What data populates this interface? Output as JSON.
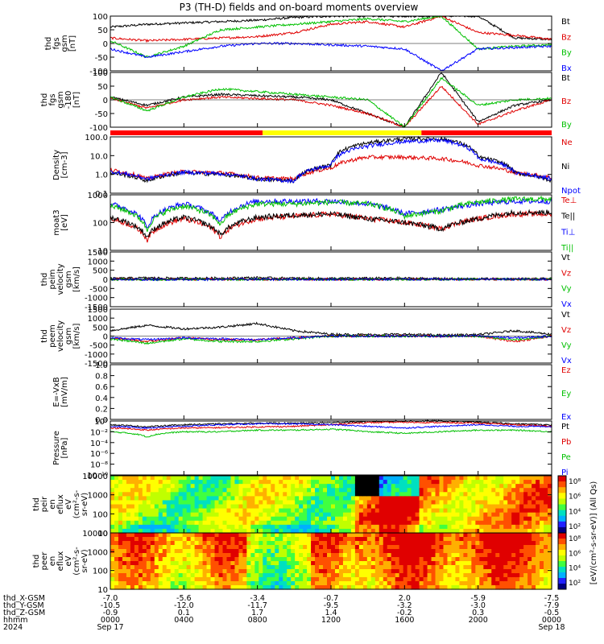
{
  "title": "P3 (TH-D) fields and on-board moments overview",
  "chart_data": [
    {
      "type": "line",
      "ylabel": [
        "thd",
        "fgs",
        "gsm",
        "[nT]"
      ],
      "yticks": [
        "100",
        "50",
        "0",
        "-50",
        "-100"
      ],
      "ylim": [
        -100,
        100
      ],
      "series": [
        {
          "name": "Bt",
          "color": "#000000",
          "values": [
            60,
            70,
            75,
            80,
            85,
            95,
            100,
            100,
            100,
            100,
            100,
            20,
            15
          ]
        },
        {
          "name": "Bz",
          "color": "#e00000",
          "values": [
            20,
            10,
            15,
            20,
            25,
            40,
            70,
            80,
            60,
            100,
            40,
            30,
            15
          ]
        },
        {
          "name": "By",
          "color": "#00c000",
          "values": [
            10,
            -50,
            -10,
            50,
            60,
            70,
            80,
            90,
            80,
            100,
            -20,
            -10,
            -5
          ]
        },
        {
          "name": "Bx",
          "color": "#0000ff",
          "values": [
            -20,
            -50,
            -30,
            -10,
            0,
            0,
            -5,
            -10,
            -20,
            -100,
            -20,
            -15,
            -10
          ]
        }
      ]
    },
    {
      "type": "line",
      "ylabel": [
        "thd",
        "fgs",
        "gsm",
        "-180",
        "[nT]"
      ],
      "yticks": [
        "100",
        "50",
        "0",
        "-50",
        "-100"
      ],
      "ylim": [
        -100,
        100
      ],
      "series": [
        {
          "name": "Bt",
          "color": "#000000",
          "values": [
            10,
            -20,
            10,
            20,
            15,
            10,
            0,
            -50,
            -100,
            100,
            -80,
            -20,
            0
          ]
        },
        {
          "name": "Bz",
          "color": "#e00000",
          "values": [
            5,
            -30,
            0,
            10,
            5,
            0,
            -20,
            -50,
            -100,
            50,
            -90,
            -40,
            0
          ]
        },
        {
          "name": "By",
          "color": "#00c000",
          "values": [
            10,
            -40,
            10,
            40,
            30,
            20,
            10,
            0,
            -100,
            80,
            -20,
            0,
            5
          ]
        }
      ]
    },
    {
      "type": "line",
      "ylabel": [
        "Density",
        "[cm-3]"
      ],
      "yticks": [
        "100.0",
        "10.0",
        "1.0",
        "0.1"
      ],
      "ylim": [
        0.05,
        200
      ],
      "yscale": "log",
      "series": [
        {
          "name": "Ne",
          "color": "#e00000",
          "values": [
            1.5,
            0.4,
            1.2,
            1.0,
            0.5,
            0.4,
            2,
            10,
            10,
            8,
            3,
            1,
            0.5
          ]
        },
        {
          "name": "Ni",
          "color": "#000000",
          "values": [
            1.0,
            0.3,
            1.0,
            0.8,
            0.4,
            0.3,
            3,
            80,
            150,
            150,
            10,
            1,
            0.3
          ]
        },
        {
          "name": "Npot",
          "color": "#0000ff",
          "values": [
            1.2,
            0.4,
            1.1,
            0.9,
            0.4,
            0.3,
            3,
            50,
            100,
            120,
            8,
            1,
            0.4
          ]
        }
      ]
    },
    {
      "type": "line",
      "ylabel": [
        "moat3",
        "[eV]"
      ],
      "yticks": [
        "1000",
        "100",
        "10"
      ],
      "ylim": [
        10,
        4000
      ],
      "yscale": "log",
      "series": [
        {
          "name": "Te⊥",
          "color": "#e00000",
          "values": [
            300,
            30,
            300,
            40,
            300,
            400,
            500,
            300,
            200,
            100,
            300,
            500,
            500
          ]
        },
        {
          "name": "Te||",
          "color": "#000000",
          "values": [
            350,
            40,
            350,
            50,
            350,
            450,
            500,
            300,
            200,
            100,
            300,
            600,
            600
          ]
        },
        {
          "name": "Ti⊥",
          "color": "#0000ff",
          "values": [
            1500,
            100,
            1500,
            200,
            2000,
            2000,
            2000,
            1500,
            500,
            800,
            1500,
            2000,
            2000
          ]
        },
        {
          "name": "Ti||",
          "color": "#00c000",
          "values": [
            1200,
            80,
            1200,
            150,
            1500,
            1500,
            1800,
            1500,
            400,
            700,
            1800,
            2500,
            2500
          ]
        }
      ]
    },
    {
      "type": "line",
      "ylabel": [
        "thd",
        "peim",
        "velocity",
        "gsm",
        "[km/s]"
      ],
      "yticks": [
        "1500",
        "1000",
        "500",
        "0",
        "-500",
        "-1000",
        "-1500"
      ],
      "ylim": [
        -1500,
        1500
      ],
      "series": [
        {
          "name": "Vt",
          "color": "#000000",
          "values": [
            50,
            80,
            60,
            70,
            90,
            60,
            50,
            60,
            60,
            40,
            30,
            30,
            30
          ]
        },
        {
          "name": "Vz",
          "color": "#e00000",
          "values": [
            0,
            10,
            0,
            5,
            0,
            5,
            0,
            0,
            0,
            0,
            0,
            0,
            0
          ]
        },
        {
          "name": "Vy",
          "color": "#00c000",
          "values": [
            0,
            -20,
            0,
            -10,
            0,
            0,
            0,
            0,
            0,
            0,
            0,
            0,
            0
          ]
        },
        {
          "name": "Vx",
          "color": "#0000ff",
          "values": [
            0,
            -10,
            0,
            -5,
            0,
            0,
            0,
            0,
            0,
            0,
            0,
            0,
            0
          ]
        }
      ]
    },
    {
      "type": "line",
      "ylabel": [
        "thd",
        "peem",
        "velocity",
        "gsm",
        "[km/s]"
      ],
      "yticks": [
        "1500",
        "1000",
        "500",
        "0",
        "-500",
        "-1000",
        "-1500"
      ],
      "ylim": [
        -1500,
        1500
      ],
      "series": [
        {
          "name": "Vt",
          "color": "#000000",
          "values": [
            300,
            600,
            400,
            500,
            700,
            300,
            100,
            80,
            100,
            50,
            80,
            300,
            100
          ]
        },
        {
          "name": "Vz",
          "color": "#e00000",
          "values": [
            -100,
            -300,
            -100,
            -200,
            -200,
            -100,
            0,
            0,
            0,
            0,
            0,
            -300,
            0
          ]
        },
        {
          "name": "Vy",
          "color": "#00c000",
          "values": [
            -150,
            -400,
            -150,
            -300,
            -300,
            -150,
            0,
            0,
            0,
            0,
            0,
            -200,
            0
          ]
        },
        {
          "name": "Vx",
          "color": "#0000ff",
          "values": [
            -100,
            -200,
            -100,
            -150,
            -200,
            -100,
            0,
            0,
            0,
            0,
            0,
            -100,
            0
          ]
        }
      ]
    },
    {
      "type": "line",
      "ylabel": [
        "E=-VxB",
        "[mV/m]"
      ],
      "yticks": [
        "1.0",
        "0.8",
        "0.6",
        "0.4",
        "0.2",
        "0.0"
      ],
      "ylim": [
        0,
        1
      ],
      "series": [
        {
          "name": "Ez",
          "color": "#e00000",
          "values": []
        },
        {
          "name": "Ey",
          "color": "#00c000",
          "values": []
        },
        {
          "name": "Ex",
          "color": "#0000ff",
          "values": []
        }
      ]
    },
    {
      "type": "line",
      "ylabel": [
        "Pressure",
        "[nPa]"
      ],
      "yticks": [
        "10⁰",
        "10⁻²",
        "10⁻⁴",
        "10⁻⁶",
        "10⁻⁸",
        "10⁻¹⁰"
      ],
      "ylim": [
        1e-10,
        1
      ],
      "yscale": "log",
      "series": [
        {
          "name": "Pt",
          "color": "#000000",
          "values": [
            0.2,
            0.08,
            0.2,
            0.3,
            0.4,
            0.4,
            0.5,
            0.8,
            1,
            1,
            0.6,
            0.3,
            0.2
          ]
        },
        {
          "name": "Pb",
          "color": "#e00000",
          "values": [
            0.05,
            0.02,
            0.05,
            0.06,
            0.08,
            0.1,
            0.2,
            0.5,
            0.6,
            0.5,
            0.4,
            0.2,
            0.1
          ]
        },
        {
          "name": "Pe",
          "color": "#00c000",
          "values": [
            0.01,
            0.001,
            0.01,
            0.01,
            0.02,
            0.02,
            0.03,
            0.01,
            0.005,
            0.01,
            0.02,
            0.02,
            0.01
          ]
        },
        {
          "name": "Pi",
          "color": "#0000ff",
          "values": [
            0.1,
            0.05,
            0.1,
            0.2,
            0.3,
            0.3,
            0.2,
            0.1,
            0.05,
            0.1,
            0.2,
            0.1,
            0.1
          ]
        }
      ]
    },
    {
      "type": "heatmap",
      "ylabel": [
        "thd",
        "peir",
        "en",
        "eflux",
        "eV",
        "(cm²-s-",
        "sr-eV)"
      ],
      "yticks": [
        "10000",
        "1000",
        "100",
        "10"
      ],
      "ylim": [
        5,
        25000
      ],
      "yscale": "log"
    },
    {
      "type": "heatmap",
      "ylabel": [
        "thd",
        "peer",
        "en",
        "eflux",
        "eV",
        "(cm²-s-",
        "sr-eV)"
      ],
      "yticks": [
        "10000",
        "1000",
        "100",
        "10"
      ],
      "ylim": [
        5,
        25000
      ],
      "yscale": "log"
    }
  ],
  "colorbar": {
    "ticks": [
      "10⁸",
      "10⁶",
      "10⁴",
      "10²"
    ],
    "label": "[eV/(cm²-s-sr-eV)] (All Qs)",
    "label2": "[eV/(cm²-s-sr-eV)]"
  },
  "mode_bar": [
    {
      "from": 0.0,
      "to": 0.345,
      "color": "#ff0000"
    },
    {
      "from": 0.345,
      "to": 0.705,
      "color": "#ffff00"
    },
    {
      "from": 0.705,
      "to": 1.0,
      "color": "#ff0000"
    }
  ],
  "x_axis": {
    "rows": [
      {
        "label": "thd_X-GSM",
        "values": [
          "-7.0",
          "-5.6",
          "-3.4",
          "-0.7",
          "2.0",
          "-5.9",
          "-7.5"
        ]
      },
      {
        "label": "thd_Y-GSM",
        "values": [
          "-10.5",
          "-12.0",
          "-11.7",
          "-9.5",
          "-3.2",
          "-3.0",
          "-7.9"
        ]
      },
      {
        "label": "thd_Z-GSM",
        "values": [
          "-0.9",
          "0.1",
          "1.7",
          "1.4",
          "-0.2",
          "0.3",
          "-0.5"
        ]
      },
      {
        "label": "hhmm",
        "values": [
          "0000",
          "0400",
          "0800",
          "1200",
          "1600",
          "2000",
          "0000"
        ]
      },
      {
        "label": "2024",
        "values": [
          "Sep 17",
          "",
          "",
          "",
          "",
          "",
          "Sep 18"
        ]
      }
    ]
  }
}
